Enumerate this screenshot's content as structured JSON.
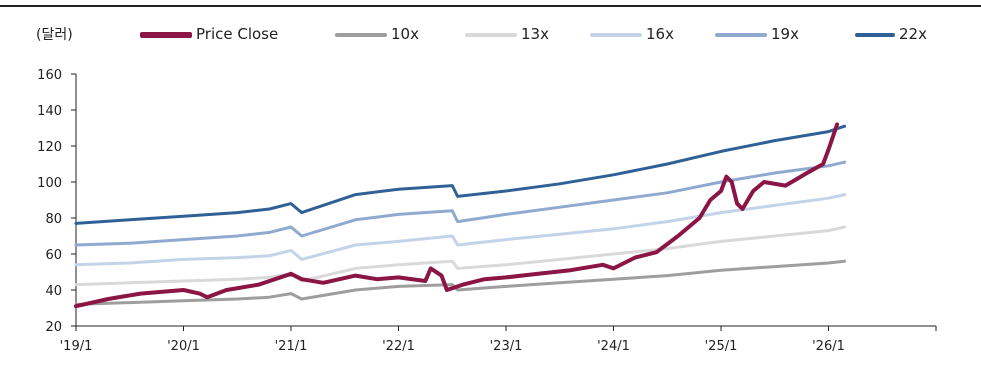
{
  "chart_data": {
    "type": "line",
    "ylabel": "(달러)",
    "ylim": [
      20,
      160
    ],
    "yticks": [
      20,
      40,
      60,
      80,
      100,
      120,
      140,
      160
    ],
    "x_tick_labels": [
      "'19/1",
      "'20/1",
      "'21/1",
      "'22/1",
      "'23/1",
      "'24/1",
      "'25/1",
      "'26/1"
    ],
    "x_tick_years": [
      2019,
      2020,
      2021,
      2022,
      2023,
      2024,
      2025,
      2026
    ],
    "xlim": [
      2019.0,
      2027.0
    ],
    "grid": false,
    "legend_position": "top",
    "series": [
      {
        "name": "Price Close",
        "color": "#8b1545",
        "x": [
          2019.0,
          2019.3,
          2019.6,
          2020.0,
          2020.15,
          2020.22,
          2020.4,
          2020.7,
          2021.0,
          2021.1,
          2021.3,
          2021.6,
          2021.8,
          2022.0,
          2022.25,
          2022.3,
          2022.4,
          2022.45,
          2022.6,
          2022.8,
          2023.0,
          2023.3,
          2023.6,
          2023.9,
          2024.0,
          2024.2,
          2024.4,
          2024.6,
          2024.8,
          2024.9,
          2025.0,
          2025.05,
          2025.1,
          2025.15,
          2025.2,
          2025.3,
          2025.4,
          2025.6,
          2025.8,
          2025.95,
          2026.0,
          2026.08
        ],
        "y": [
          31,
          35,
          38,
          40,
          38,
          36,
          40,
          43,
          49,
          46,
          44,
          48,
          46,
          47,
          45,
          52,
          48,
          40,
          43,
          46,
          47,
          49,
          51,
          54,
          52,
          58,
          61,
          70,
          80,
          90,
          95,
          103,
          100,
          88,
          85,
          95,
          100,
          98,
          105,
          110,
          118,
          132
        ]
      },
      {
        "name": "10x",
        "color": "#9e9e9e",
        "x": [
          2019.0,
          2019.5,
          2020.0,
          2020.5,
          2020.8,
          2021.0,
          2021.1,
          2021.6,
          2022.0,
          2022.5,
          2022.55,
          2023.0,
          2023.5,
          2024.0,
          2024.5,
          2025.0,
          2025.5,
          2026.0,
          2026.15
        ],
        "y": [
          32,
          33,
          34,
          35,
          36,
          38,
          35,
          40,
          42,
          43,
          40,
          42,
          44,
          46,
          48,
          51,
          53,
          55,
          56
        ]
      },
      {
        "name": "13x",
        "color": "#d9d9d9",
        "x": [
          2019.0,
          2019.5,
          2020.0,
          2020.5,
          2020.8,
          2021.0,
          2021.1,
          2021.6,
          2022.0,
          2022.5,
          2022.55,
          2023.0,
          2023.5,
          2024.0,
          2024.5,
          2025.0,
          2025.5,
          2026.0,
          2026.15
        ],
        "y": [
          43,
          44,
          45,
          46,
          47,
          49,
          45,
          52,
          54,
          56,
          52,
          54,
          57,
          60,
          63,
          67,
          70,
          73,
          75
        ]
      },
      {
        "name": "16x",
        "color": "#c3d3e8",
        "x": [
          2019.0,
          2019.5,
          2020.0,
          2020.5,
          2020.8,
          2021.0,
          2021.1,
          2021.6,
          2022.0,
          2022.5,
          2022.55,
          2023.0,
          2023.5,
          2024.0,
          2024.5,
          2025.0,
          2025.5,
          2026.0,
          2026.15
        ],
        "y": [
          54,
          55,
          57,
          58,
          59,
          62,
          57,
          65,
          67,
          70,
          65,
          68,
          71,
          74,
          78,
          83,
          87,
          91,
          93
        ]
      },
      {
        "name": "19x",
        "color": "#8fa9cf",
        "x": [
          2019.0,
          2019.5,
          2020.0,
          2020.5,
          2020.8,
          2021.0,
          2021.1,
          2021.6,
          2022.0,
          2022.5,
          2022.55,
          2023.0,
          2023.5,
          2024.0,
          2024.5,
          2025.0,
          2025.5,
          2026.0,
          2026.15
        ],
        "y": [
          65,
          66,
          68,
          70,
          72,
          75,
          70,
          79,
          82,
          84,
          78,
          82,
          86,
          90,
          94,
          100,
          105,
          109,
          111
        ]
      },
      {
        "name": "22x",
        "color": "#2f6196",
        "x": [
          2019.0,
          2019.5,
          2020.0,
          2020.5,
          2020.8,
          2021.0,
          2021.1,
          2021.6,
          2022.0,
          2022.5,
          2022.55,
          2023.0,
          2023.5,
          2024.0,
          2024.5,
          2025.0,
          2025.5,
          2026.0,
          2026.15
        ],
        "y": [
          77,
          79,
          81,
          83,
          85,
          88,
          83,
          93,
          96,
          98,
          92,
          95,
          99,
          104,
          110,
          117,
          123,
          128,
          131
        ]
      }
    ]
  }
}
